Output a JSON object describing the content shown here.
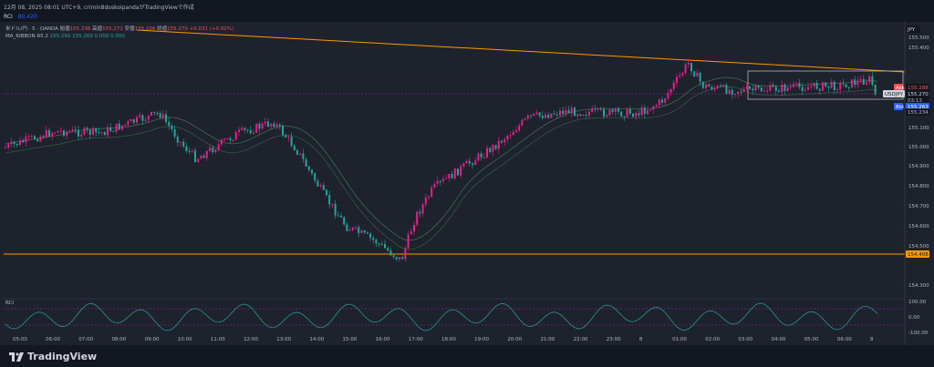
{
  "header": {
    "datetime": "12月 08, 2025 08:01 UTC+9",
    "published": "crimin8doskoipandaがTradingViewで作成"
  },
  "rci_top": {
    "label": "RCI",
    "value": "80.420"
  },
  "legend": {
    "symbol": "米ドル/円 · 5 · OANDA",
    "open_label": "始値",
    "open": "155.236",
    "high_label": "高値",
    "high": "155.271",
    "low_label": "安値",
    "low": "155.236",
    "close_label": "終値",
    "close": "155.270",
    "change": "+0.031 (+0.02%)",
    "ma_label": "MA_RIBBON R5.2",
    "ma_v1": "155.260",
    "ma_v2": "155.269",
    "ma_v3": "0.000",
    "ma_v4": "0.000"
  },
  "price_axis": {
    "currency": "JPY",
    "ticks": [
      "155.500",
      "155.400",
      "155.100",
      "155.000",
      "154.900",
      "154.800",
      "154.700",
      "154.600",
      "154.500",
      "154.300"
    ],
    "ask_label": "Ask",
    "ask": "155.288",
    "symbol_tag": "USDJPY",
    "symbol_price": "155.270",
    "countdown": "03:13",
    "bid_label": "Bid",
    "bid": "155.263",
    "lower_price": "155.234",
    "support_price": "154.408"
  },
  "rci_panel": {
    "label": "RCI",
    "ticks": [
      "100.00",
      "0.00",
      "-100.00"
    ]
  },
  "time_axis": [
    "05:00",
    "06:00",
    "07:00",
    "08:00",
    "09:00",
    "10:00",
    "11:00",
    "12:00",
    "13:00",
    "14:00",
    "15:00",
    "16:00",
    "17:00",
    "18:00",
    "19:00",
    "20:00",
    "21:00",
    "22:00",
    "23:00",
    "8",
    "01:00",
    "02:00",
    "03:00",
    "04:00",
    "05:00",
    "06:00",
    "8"
  ],
  "footer": {
    "brand": "TradingView"
  },
  "colors": {
    "up": "#e91e8c",
    "down": "#26a69a",
    "trend": "#ff9800",
    "ribbon": "#2e5a3e",
    "rci": "#26a69a",
    "bid": "#2962ff",
    "ask": "#ef5350"
  }
}
